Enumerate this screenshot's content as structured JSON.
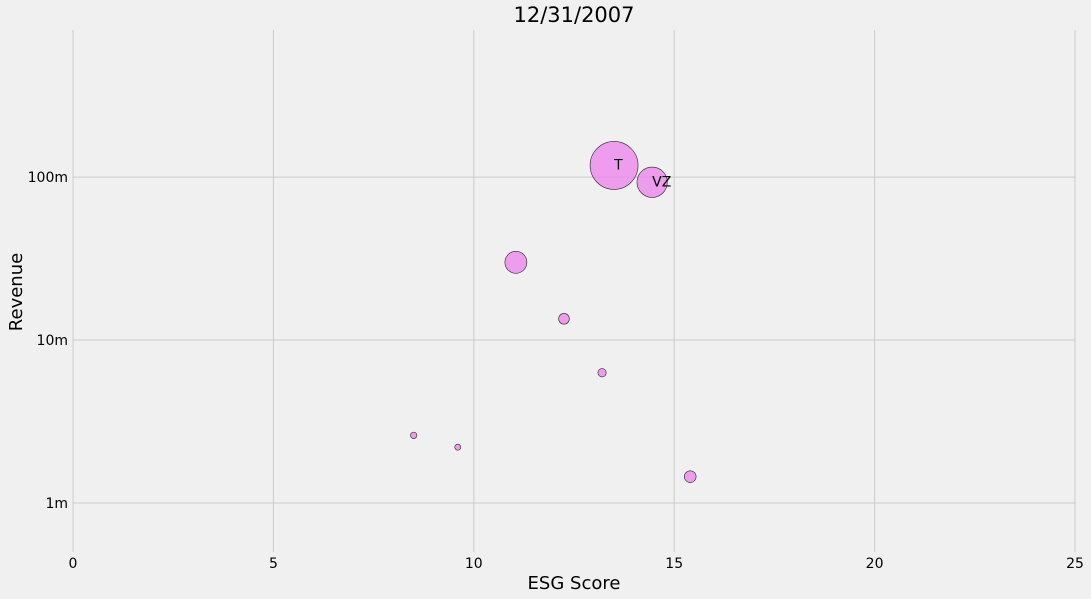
{
  "chart_data": {
    "type": "scatter",
    "title": "12/31/2007",
    "xlabel": "ESG Score",
    "ylabel": "Revenue",
    "xlim": [
      0,
      25
    ],
    "xticks": [
      0,
      5,
      10,
      15,
      20,
      25
    ],
    "yscale": "log",
    "ylim": [
      500000,
      800000000
    ],
    "yticks": [
      {
        "value": 1000000,
        "label": "1m"
      },
      {
        "value": 10000000,
        "label": "10m"
      },
      {
        "value": 100000000,
        "label": "100m"
      }
    ],
    "grid": true,
    "marker_color": "#ee82ee",
    "points": [
      {
        "x": 13.5,
        "y": 118000000,
        "size": 1.0,
        "label": "T"
      },
      {
        "x": 14.45,
        "y": 93000000,
        "size": 0.4,
        "label": "VZ"
      },
      {
        "x": 11.05,
        "y": 30000000,
        "size": 0.21,
        "label": ""
      },
      {
        "x": 12.25,
        "y": 13500000,
        "size": 0.05,
        "label": ""
      },
      {
        "x": 13.2,
        "y": 6300000,
        "size": 0.03,
        "label": ""
      },
      {
        "x": 8.5,
        "y": 2600000,
        "size": 0.018,
        "label": ""
      },
      {
        "x": 9.6,
        "y": 2200000,
        "size": 0.015,
        "label": ""
      },
      {
        "x": 15.4,
        "y": 1450000,
        "size": 0.06,
        "label": ""
      }
    ]
  }
}
